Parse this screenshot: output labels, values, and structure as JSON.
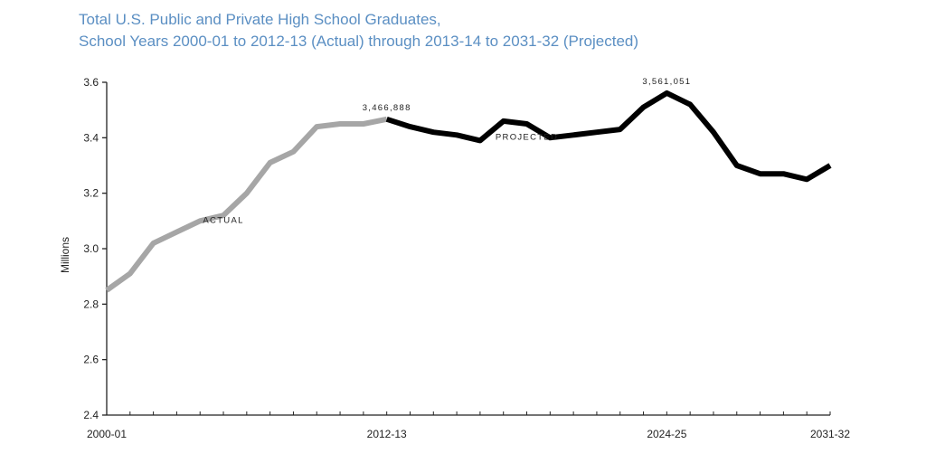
{
  "chart_data": {
    "type": "line",
    "title_lines": [
      "Total U.S. Public and Private High School Graduates,",
      "School Years 2000-01 to 2012-13 (Actual) through 2013-14 to 2031-32 (Projected)"
    ],
    "xlabel": "",
    "ylabel": "Millions",
    "ylim": [
      2.4,
      3.6
    ],
    "yticks": [
      "2.4",
      "2.6",
      "2.8",
      "3.0",
      "3.2",
      "3.4",
      "3.6"
    ],
    "xtick_labels": [
      {
        "label": "2000-01",
        "year": 2000
      },
      {
        "label": "2012-13",
        "year": 2012
      },
      {
        "label": "2024-25",
        "year": 2024
      },
      {
        "label": "2031-32",
        "year": 2031
      }
    ],
    "grid": false,
    "legend": "none",
    "series": [
      {
        "name": "ACTUAL",
        "color": "#a6a6a6",
        "x": [
          "2000-01",
          "2001-02",
          "2002-03",
          "2003-04",
          "2004-05",
          "2005-06",
          "2006-07",
          "2007-08",
          "2008-09",
          "2009-10",
          "2010-11",
          "2011-12",
          "2012-13"
        ],
        "values": [
          2.85,
          2.91,
          3.02,
          3.06,
          3.1,
          3.12,
          3.2,
          3.31,
          3.35,
          3.44,
          3.45,
          3.45,
          3.466888
        ]
      },
      {
        "name": "PROJECTED",
        "color": "#000000",
        "x": [
          "2012-13",
          "2013-14",
          "2014-15",
          "2015-16",
          "2016-17",
          "2017-18",
          "2018-19",
          "2019-20",
          "2020-21",
          "2021-22",
          "2022-23",
          "2023-24",
          "2024-25",
          "2025-26",
          "2026-27",
          "2027-28",
          "2028-29",
          "2029-30",
          "2030-31",
          "2031-32"
        ],
        "values": [
          3.466888,
          3.44,
          3.42,
          3.41,
          3.39,
          3.46,
          3.45,
          3.4,
          3.41,
          3.42,
          3.43,
          3.51,
          3.561051,
          3.52,
          3.42,
          3.3,
          3.27,
          3.27,
          3.25,
          3.3
        ]
      }
    ],
    "annotations": [
      {
        "text": "ACTUAL",
        "x": "2005-06",
        "y": 3.06
      },
      {
        "text": "PROJECTED",
        "x": "2018-19",
        "y": 3.36
      },
      {
        "text": "3,466,888",
        "x": "2012-13",
        "y": 3.466888
      },
      {
        "text": "3,561,051",
        "x": "2024-25",
        "y": 3.561051
      }
    ]
  }
}
